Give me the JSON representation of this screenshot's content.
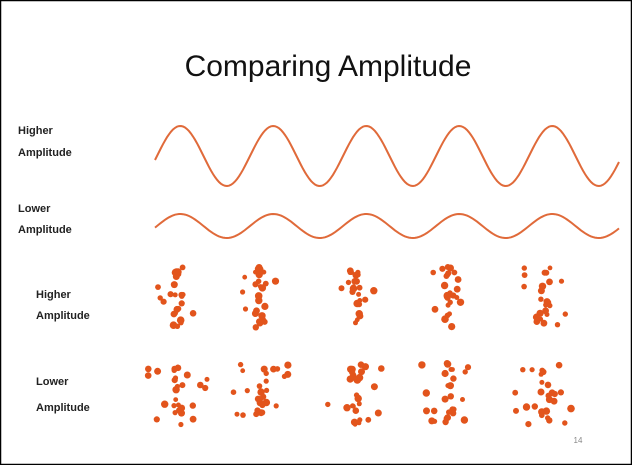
{
  "slide": {
    "title": "Comparing Amplitude",
    "labels": [
      [
        "Higher",
        "Amplitude"
      ],
      [
        "Lower",
        "Amplitude"
      ],
      [
        "Higher",
        "Amplitude"
      ],
      [
        "Lower",
        "Amplitude"
      ]
    ],
    "page_number": "14"
  }
}
